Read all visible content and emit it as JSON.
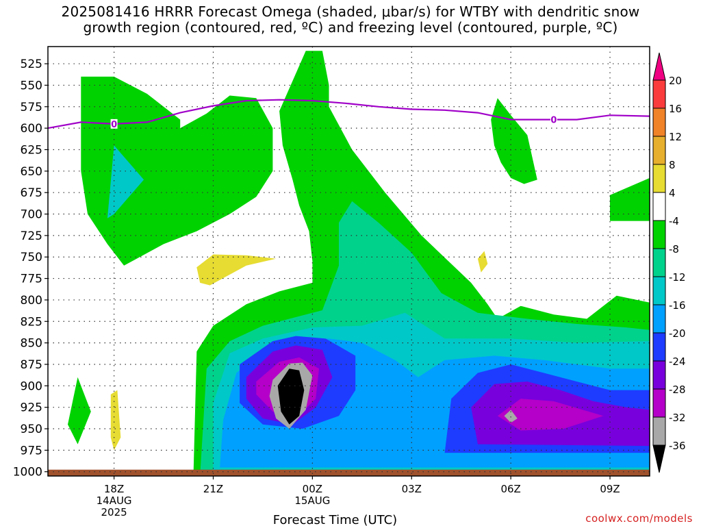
{
  "title": {
    "line1": "2025081416 HRRR Forecast Omega (shaded, μbar/s) for WTBY with dendritic snow",
    "line2": "growth region (contoured, red, ºC) and freezing level (contoured, purple, ºC)"
  },
  "credit": "coolwx.com/models",
  "chart_data": {
    "type": "contour",
    "title": "2025081416 HRRR Forecast Omega (shaded, μbar/s) for WTBY with dendritic snow growth region (contoured, red, ºC) and freezing level (contoured, purple, ºC)",
    "xlabel": "Forecast Time (UTC)",
    "ylabel": "",
    "y_axis": {
      "reversed": true,
      "ticks": [
        525,
        550,
        575,
        600,
        625,
        650,
        675,
        700,
        725,
        750,
        775,
        800,
        825,
        850,
        875,
        900,
        925,
        950,
        975,
        1000
      ],
      "ylim": [
        1005,
        505
      ]
    },
    "x_axis": {
      "xlim": [
        16,
        34.2
      ],
      "ticks": [
        {
          "x": 18,
          "label": "18Z",
          "sub1": "14AUG",
          "sub2": "2025"
        },
        {
          "x": 21,
          "label": "21Z",
          "sub1": "",
          "sub2": ""
        },
        {
          "x": 24,
          "label": "00Z",
          "sub1": "15AUG",
          "sub2": ""
        },
        {
          "x": 27,
          "label": "03Z",
          "sub1": "",
          "sub2": ""
        },
        {
          "x": 30,
          "label": "06Z",
          "sub1": "",
          "sub2": ""
        },
        {
          "x": 33,
          "label": "09Z",
          "sub1": "",
          "sub2": ""
        }
      ]
    },
    "grid": true,
    "colorbar": {
      "levels": [
        -36,
        -32,
        -28,
        -24,
        -20,
        -16,
        -12,
        -8,
        -4,
        4,
        8,
        12,
        16,
        20
      ],
      "labels": [
        "20",
        "16",
        "12",
        "8",
        "4",
        "-4",
        "-8",
        "-12",
        "-16",
        "-20",
        "-24",
        "-28",
        "-32",
        "-36"
      ],
      "colors": {
        "below_-36": "#000000",
        "-36_-32": "#a8a8a8",
        "-32_-28": "#b400c8",
        "-28_-24": "#7800dc",
        "-24_-20": "#1e3cff",
        "-20_-16": "#00a0ff",
        "-16_-12": "#00c8c8",
        "-12_-8": "#00d28c",
        "-8_-4": "#00d200",
        "-4_4": "#ffffff",
        "4_8": "#e6dc32",
        "8_12": "#e6af2d",
        "12_16": "#f08228",
        "16_20": "#fa3c3c",
        "above_20": "#f00082"
      }
    },
    "freezing_level": {
      "label": "0",
      "color": "#a000c8",
      "points": [
        [
          16,
          600
        ],
        [
          17,
          593
        ],
        [
          18,
          595
        ],
        [
          19,
          593
        ],
        [
          20,
          582
        ],
        [
          21,
          574
        ],
        [
          22,
          568
        ],
        [
          23,
          567
        ],
        [
          24,
          568
        ],
        [
          25,
          571
        ],
        [
          26,
          575
        ],
        [
          27,
          578
        ],
        [
          28,
          579
        ],
        [
          29,
          582
        ],
        [
          30,
          590
        ],
        [
          31,
          590
        ],
        [
          32,
          590
        ],
        [
          33,
          585
        ],
        [
          34.2,
          586
        ]
      ]
    },
    "surface": {
      "color": "#a0522d",
      "pressure_top": 1000
    },
    "shaded_regions": [
      {
        "level": "-8_-4",
        "color": "#00d200",
        "polygon": [
          [
            17.0,
            540
          ],
          [
            18.0,
            540
          ],
          [
            19.0,
            560
          ],
          [
            20.0,
            590
          ],
          [
            20.0,
            600
          ],
          [
            20.8,
            583
          ],
          [
            21.5,
            562
          ],
          [
            22.3,
            565
          ],
          [
            22.8,
            600
          ],
          [
            22.8,
            650
          ],
          [
            22.3,
            680
          ],
          [
            21.5,
            700
          ],
          [
            20.5,
            720
          ],
          [
            19.5,
            735
          ],
          [
            18.3,
            760
          ],
          [
            17.8,
            735
          ],
          [
            17.2,
            700
          ],
          [
            17.0,
            650
          ]
        ]
      },
      {
        "level": "-8_-4",
        "color": "#00d200",
        "polygon": [
          [
            23.8,
            510
          ],
          [
            24.3,
            510
          ],
          [
            24.5,
            550
          ],
          [
            24.5,
            575
          ],
          [
            25.2,
            625
          ],
          [
            26.2,
            675
          ],
          [
            27.3,
            725
          ],
          [
            28.2,
            758
          ],
          [
            28.8,
            780
          ],
          [
            29.3,
            805
          ],
          [
            29.6,
            822
          ],
          [
            30.3,
            807
          ],
          [
            31.3,
            817
          ],
          [
            32.3,
            822
          ],
          [
            33.2,
            795
          ],
          [
            34.2,
            803
          ],
          [
            34.2,
            1005
          ],
          [
            20.4,
            1005
          ],
          [
            20.5,
            860
          ],
          [
            21.0,
            830
          ],
          [
            22.0,
            805
          ],
          [
            23.0,
            790
          ],
          [
            24.0,
            780
          ],
          [
            24.0,
            755
          ],
          [
            23.9,
            720
          ],
          [
            23.6,
            690
          ],
          [
            23.4,
            660
          ],
          [
            23.1,
            620
          ],
          [
            23.0,
            580
          ]
        ]
      },
      {
        "level": "-8_-4",
        "color": "#00d200",
        "polygon": [
          [
            29.6,
            565
          ],
          [
            30.0,
            585
          ],
          [
            30.5,
            608
          ],
          [
            30.8,
            660
          ],
          [
            30.4,
            665
          ],
          [
            30.0,
            658
          ],
          [
            29.7,
            640
          ],
          [
            29.5,
            620
          ],
          [
            29.4,
            590
          ]
        ]
      },
      {
        "level": "-8_-4",
        "color": "#00d200",
        "polygon": [
          [
            33.0,
            678
          ],
          [
            34.2,
            658
          ],
          [
            34.2,
            708
          ],
          [
            33.0,
            708
          ]
        ]
      },
      {
        "level": "-8_-4",
        "color": "#00d200",
        "polygon": [
          [
            16.6,
            945
          ],
          [
            16.9,
            890
          ],
          [
            17.3,
            930
          ],
          [
            16.9,
            968
          ]
        ]
      },
      {
        "level": "4_8",
        "color": "#e6dc32",
        "polygon": [
          [
            20.5,
            762
          ],
          [
            21.0,
            747
          ],
          [
            22.0,
            748
          ],
          [
            22.9,
            752
          ],
          [
            22.0,
            760
          ],
          [
            20.9,
            783
          ],
          [
            20.6,
            780
          ]
        ]
      },
      {
        "level": "4_8",
        "color": "#e6dc32",
        "polygon": [
          [
            17.9,
            910
          ],
          [
            18.1,
            905
          ],
          [
            18.2,
            960
          ],
          [
            18.0,
            975
          ],
          [
            17.9,
            960
          ]
        ]
      },
      {
        "level": "4_8",
        "color": "#e6dc32",
        "polygon": [
          [
            29.0,
            752
          ],
          [
            29.2,
            743
          ],
          [
            29.3,
            758
          ],
          [
            29.1,
            768
          ]
        ]
      },
      {
        "level": "-12_-8",
        "color": "#00d28c",
        "polygon": [
          [
            24.8,
            710
          ],
          [
            25.2,
            685
          ],
          [
            26.0,
            710
          ],
          [
            27.0,
            745
          ],
          [
            27.9,
            792
          ],
          [
            29.0,
            815
          ],
          [
            30.5,
            822
          ],
          [
            32.0,
            828
          ],
          [
            33.5,
            832
          ],
          [
            34.2,
            835
          ],
          [
            34.2,
            1005
          ],
          [
            20.6,
            1005
          ],
          [
            20.8,
            880
          ],
          [
            21.5,
            848
          ],
          [
            22.5,
            830
          ],
          [
            23.5,
            820
          ],
          [
            24.3,
            812
          ],
          [
            24.8,
            760
          ]
        ]
      },
      {
        "level": "-16_-12",
        "color": "#00c8c8",
        "polygon": [
          [
            17.8,
            705
          ],
          [
            18.0,
            620
          ],
          [
            18.9,
            660
          ],
          [
            18.0,
            700
          ]
        ]
      },
      {
        "level": "-16_-12",
        "color": "#00c8c8",
        "polygon": [
          [
            21.5,
            862
          ],
          [
            22.5,
            845
          ],
          [
            24.0,
            832
          ],
          [
            25.5,
            830
          ],
          [
            26.8,
            815
          ],
          [
            28.0,
            845
          ],
          [
            30.0,
            845
          ],
          [
            32.0,
            850
          ],
          [
            34.2,
            848
          ],
          [
            34.2,
            1000
          ],
          [
            21.0,
            1000
          ],
          [
            21.0,
            920
          ]
        ]
      },
      {
        "level": "-20_-16",
        "color": "#00a0ff",
        "polygon": [
          [
            21.7,
            885
          ],
          [
            22.5,
            860
          ],
          [
            23.5,
            848
          ],
          [
            24.5,
            845
          ],
          [
            25.5,
            850
          ],
          [
            26.5,
            870
          ],
          [
            27.2,
            890
          ],
          [
            28.0,
            870
          ],
          [
            29.5,
            865
          ],
          [
            31.0,
            870
          ],
          [
            33.0,
            880
          ],
          [
            34.2,
            880
          ],
          [
            34.2,
            995
          ],
          [
            21.2,
            995
          ],
          [
            21.3,
            940
          ]
        ]
      },
      {
        "level": "-24_-20",
        "color": "#1e3cff",
        "polygon": [
          [
            21.8,
            875
          ],
          [
            22.8,
            848
          ],
          [
            23.5,
            842
          ],
          [
            24.4,
            845
          ],
          [
            25.3,
            865
          ],
          [
            25.3,
            905
          ],
          [
            24.8,
            935
          ],
          [
            23.7,
            950
          ],
          [
            22.5,
            945
          ],
          [
            21.8,
            920
          ]
        ]
      },
      {
        "level": "-24_-20",
        "color": "#1e3cff",
        "polygon": [
          [
            28.2,
            915
          ],
          [
            29.0,
            885
          ],
          [
            30.0,
            875
          ],
          [
            31.0,
            885
          ],
          [
            32.0,
            895
          ],
          [
            33.0,
            905
          ],
          [
            34.2,
            905
          ],
          [
            34.2,
            978
          ],
          [
            28.0,
            978
          ]
        ]
      },
      {
        "level": "-28_-24",
        "color": "#7800dc",
        "polygon": [
          [
            22.0,
            890
          ],
          [
            22.8,
            860
          ],
          [
            23.5,
            853
          ],
          [
            24.3,
            858
          ],
          [
            24.6,
            890
          ],
          [
            24.1,
            925
          ],
          [
            23.4,
            945
          ],
          [
            22.5,
            938
          ],
          [
            22.0,
            915
          ]
        ]
      },
      {
        "level": "-28_-24",
        "color": "#7800dc",
        "polygon": [
          [
            28.8,
            925
          ],
          [
            29.5,
            898
          ],
          [
            30.5,
            895
          ],
          [
            31.5,
            905
          ],
          [
            32.5,
            918
          ],
          [
            33.5,
            925
          ],
          [
            34.2,
            928
          ],
          [
            34.2,
            970
          ],
          [
            29.0,
            968
          ]
        ]
      },
      {
        "level": "-32_-28",
        "color": "#b400c8",
        "polygon": [
          [
            22.3,
            895
          ],
          [
            23.0,
            872
          ],
          [
            23.6,
            867
          ],
          [
            24.2,
            880
          ],
          [
            24.1,
            915
          ],
          [
            23.5,
            938
          ],
          [
            22.8,
            930
          ],
          [
            22.3,
            910
          ]
        ]
      },
      {
        "level": "-32_-28",
        "color": "#b400c8",
        "polygon": [
          [
            29.6,
            935
          ],
          [
            30.3,
            915
          ],
          [
            31.3,
            918
          ],
          [
            32.8,
            935
          ],
          [
            31.6,
            950
          ],
          [
            30.3,
            952
          ]
        ]
      },
      {
        "level": "-36_-32",
        "color": "#a8a8a8",
        "polygon": [
          [
            22.8,
            893
          ],
          [
            23.3,
            874
          ],
          [
            23.7,
            873
          ],
          [
            24.0,
            888
          ],
          [
            23.8,
            928
          ],
          [
            23.3,
            950
          ],
          [
            22.9,
            938
          ],
          [
            22.7,
            912
          ]
        ]
      },
      {
        "level": "-36_-32",
        "color": "#a8a8a8",
        "polygon": [
          [
            29.8,
            935
          ],
          [
            30.0,
            928
          ],
          [
            30.2,
            938
          ],
          [
            30.0,
            943
          ]
        ]
      },
      {
        "level": "below_-36",
        "color": "#000000",
        "polygon": [
          [
            22.95,
            900
          ],
          [
            23.3,
            880
          ],
          [
            23.6,
            882
          ],
          [
            23.75,
            905
          ],
          [
            23.6,
            935
          ],
          [
            23.3,
            945
          ],
          [
            23.05,
            930
          ]
        ]
      }
    ]
  }
}
